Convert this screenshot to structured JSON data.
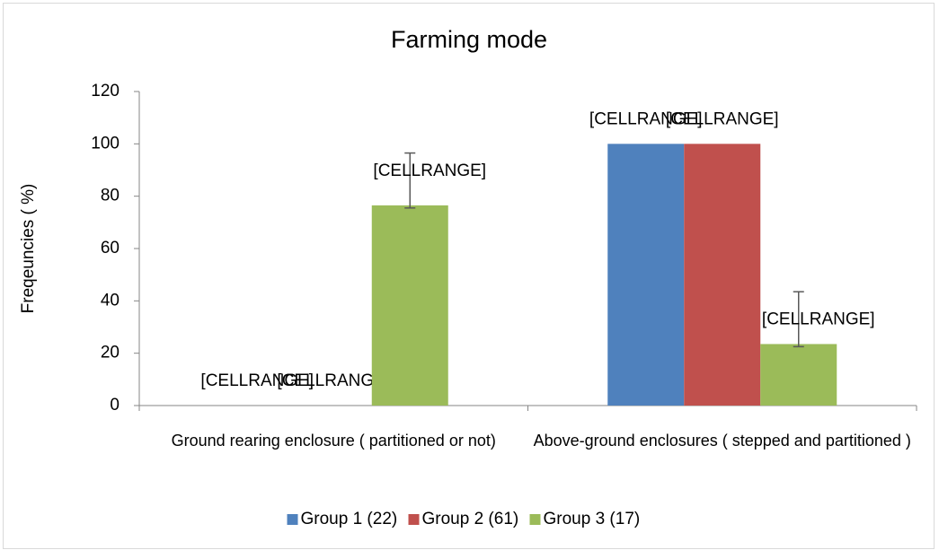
{
  "chart_data": {
    "type": "bar",
    "title": "Farming mode",
    "y_label": "Freqeuncies ( %)",
    "categories": [
      "Ground rearing enclosure ( partitioned or not)",
      "Above-ground enclosures ( stepped and partitioned )"
    ],
    "series": [
      {
        "name": "Group 1 (22)",
        "color": "#4f81bd",
        "values": [
          0,
          100
        ],
        "value_labels": [
          "[CELLRANGE]",
          "[CELLRANGE]"
        ]
      },
      {
        "name": "Group 2 (61)",
        "color": "#c0504d",
        "values": [
          0,
          100
        ],
        "value_labels": [
          "[CELLRANGE]",
          "[CELLRANGE]"
        ]
      },
      {
        "name": "Group 3 (17)",
        "color": "#9bbb59",
        "values": [
          76.5,
          23.5
        ],
        "value_labels": [
          "[CELLRANGE]",
          "[CELLRANGE]"
        ],
        "error_minus": [
          1,
          1
        ],
        "error_plus": [
          20,
          20
        ]
      }
    ],
    "ylim": [
      0,
      120
    ],
    "yticks": [
      0,
      20,
      40,
      60,
      80,
      100,
      120
    ],
    "grid": false,
    "legend": "bottom"
  }
}
